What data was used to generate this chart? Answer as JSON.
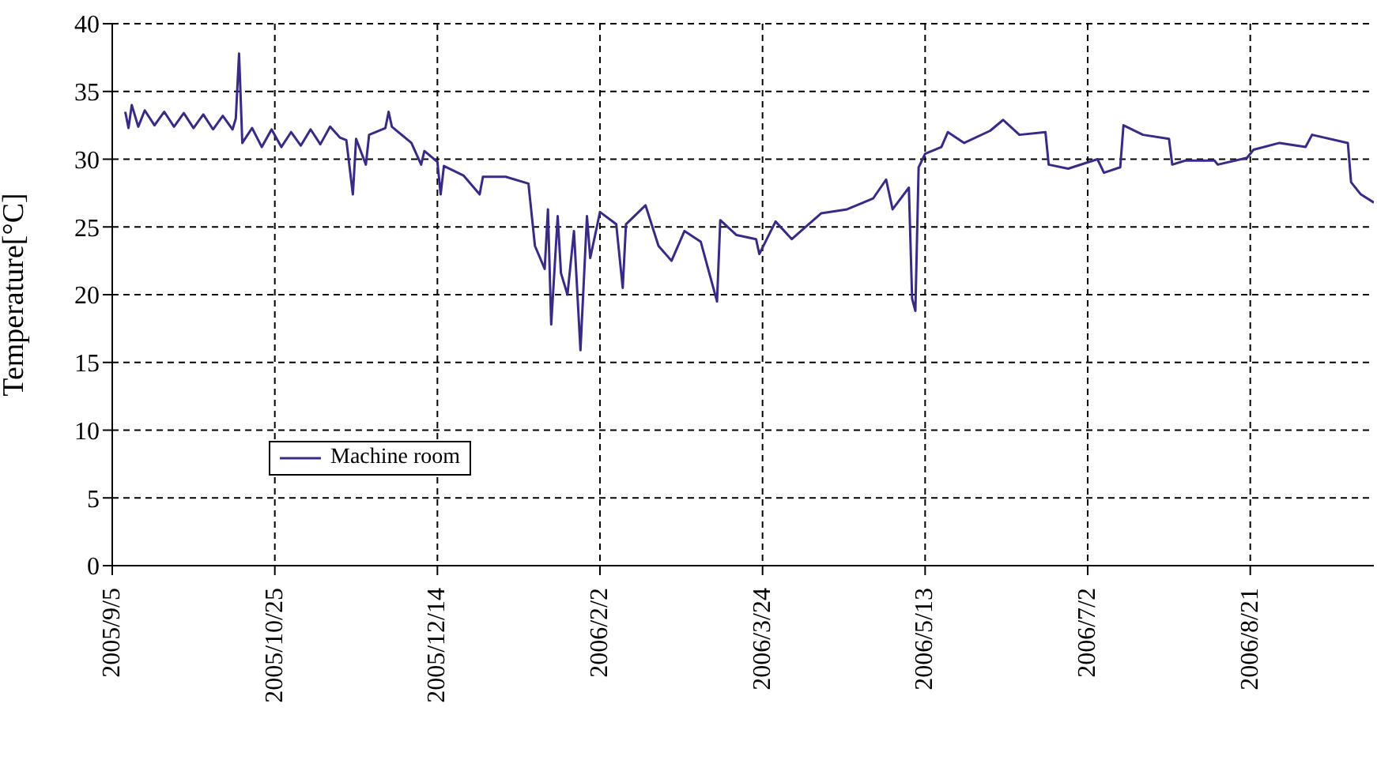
{
  "chart_data": {
    "type": "line",
    "ylabel": "Temperature[°C]",
    "x": [
      "2005-09-09",
      "2005-09-10",
      "2005-09-11",
      "2005-09-13",
      "2005-09-15",
      "2005-09-18",
      "2005-09-21",
      "2005-09-24",
      "2005-09-27",
      "2005-09-30",
      "2005-10-03",
      "2005-10-06",
      "2005-10-09",
      "2005-10-12",
      "2005-10-13",
      "2005-10-14",
      "2005-10-15",
      "2005-10-18",
      "2005-10-21",
      "2005-10-24",
      "2005-10-27",
      "2005-10-30",
      "2005-11-02",
      "2005-11-05",
      "2005-11-08",
      "2005-11-11",
      "2005-11-14",
      "2005-11-16",
      "2005-11-18",
      "2005-11-19",
      "2005-11-22",
      "2005-11-23",
      "2005-11-28",
      "2005-11-29",
      "2005-11-30",
      "2005-12-06",
      "2005-12-09",
      "2005-12-10",
      "2005-12-14",
      "2005-12-15",
      "2005-12-16",
      "2005-12-22",
      "2005-12-27",
      "2005-12-28",
      "2006-01-04",
      "2006-01-11",
      "2006-01-13",
      "2006-01-16",
      "2006-01-17",
      "2006-01-18",
      "2006-01-20",
      "2006-01-21",
      "2006-01-23",
      "2006-01-25",
      "2006-01-27",
      "2006-01-29",
      "2006-01-30",
      "2006-02-02",
      "2006-02-07",
      "2006-02-09",
      "2006-02-10",
      "2006-02-16",
      "2006-02-20",
      "2006-02-24",
      "2006-02-28",
      "2006-03-05",
      "2006-03-10",
      "2006-03-11",
      "2006-03-16",
      "2006-03-22",
      "2006-03-23",
      "2006-03-28",
      "2006-04-02",
      "2006-04-11",
      "2006-04-19",
      "2006-04-27",
      "2006-05-01",
      "2006-05-03",
      "2006-05-08",
      "2006-05-09",
      "2006-05-10",
      "2006-05-11",
      "2006-05-13",
      "2006-05-18",
      "2006-05-20",
      "2006-05-25",
      "2006-06-02",
      "2006-06-06",
      "2006-06-11",
      "2006-06-19",
      "2006-06-20",
      "2006-06-26",
      "2006-07-05",
      "2006-07-07",
      "2006-07-12",
      "2006-07-13",
      "2006-07-19",
      "2006-07-27",
      "2006-07-28",
      "2006-08-01",
      "2006-08-10",
      "2006-08-11",
      "2006-08-20",
      "2006-08-22",
      "2006-08-30",
      "2006-09-07",
      "2006-09-09",
      "2006-09-20",
      "2006-09-21",
      "2006-09-24",
      "2006-09-28"
    ],
    "series": [
      {
        "name": "Machine room",
        "color": "#3a2a86",
        "values": [
          33.5,
          32.3,
          34.0,
          32.4,
          33.6,
          32.5,
          33.5,
          32.4,
          33.4,
          32.3,
          33.3,
          32.2,
          33.2,
          32.2,
          33.0,
          37.8,
          31.2,
          32.3,
          30.9,
          32.2,
          30.9,
          32.0,
          31.0,
          32.2,
          31.1,
          32.4,
          31.6,
          31.4,
          27.4,
          31.5,
          29.6,
          31.8,
          32.3,
          33.5,
          32.4,
          31.2,
          29.6,
          30.6,
          29.8,
          27.4,
          29.5,
          28.8,
          27.4,
          28.7,
          28.7,
          28.2,
          23.6,
          21.9,
          26.3,
          17.8,
          25.8,
          21.6,
          20.0,
          24.7,
          15.9,
          25.8,
          22.7,
          26.1,
          25.2,
          20.5,
          25.2,
          26.6,
          23.6,
          22.5,
          24.7,
          23.9,
          19.5,
          25.5,
          24.4,
          24.1,
          23.0,
          25.4,
          24.1,
          26.0,
          26.3,
          27.1,
          28.5,
          26.3,
          27.9,
          19.7,
          18.8,
          29.4,
          30.4,
          30.9,
          32.0,
          31.2,
          32.1,
          32.9,
          31.8,
          32.0,
          29.6,
          29.3,
          30.0,
          29.0,
          29.4,
          32.5,
          31.8,
          31.5,
          29.6,
          29.9,
          29.9,
          29.6,
          30.1,
          30.7,
          31.2,
          30.9,
          31.8,
          31.2,
          28.3,
          27.4,
          26.8
        ]
      }
    ],
    "xlim": [
      "2005-09-05",
      "2006-09-28"
    ],
    "xticks": [
      {
        "value": "2005-09-05",
        "label": "2005/9/5"
      },
      {
        "value": "2005-10-25",
        "label": "2005/10/25"
      },
      {
        "value": "2005-12-14",
        "label": "2005/12/14"
      },
      {
        "value": "2006-02-02",
        "label": "2006/2/2"
      },
      {
        "value": "2006-03-24",
        "label": "2006/3/24"
      },
      {
        "value": "2006-05-13",
        "label": "2006/5/13"
      },
      {
        "value": "2006-07-02",
        "label": "2006/7/2"
      },
      {
        "value": "2006-08-21",
        "label": "2006/8/21"
      }
    ],
    "ylim": [
      0,
      40
    ],
    "yticks": [
      0,
      5,
      10,
      15,
      20,
      25,
      30,
      35,
      40
    ],
    "grid": true,
    "legend": "left",
    "marker": "none",
    "line_style": "solid"
  }
}
